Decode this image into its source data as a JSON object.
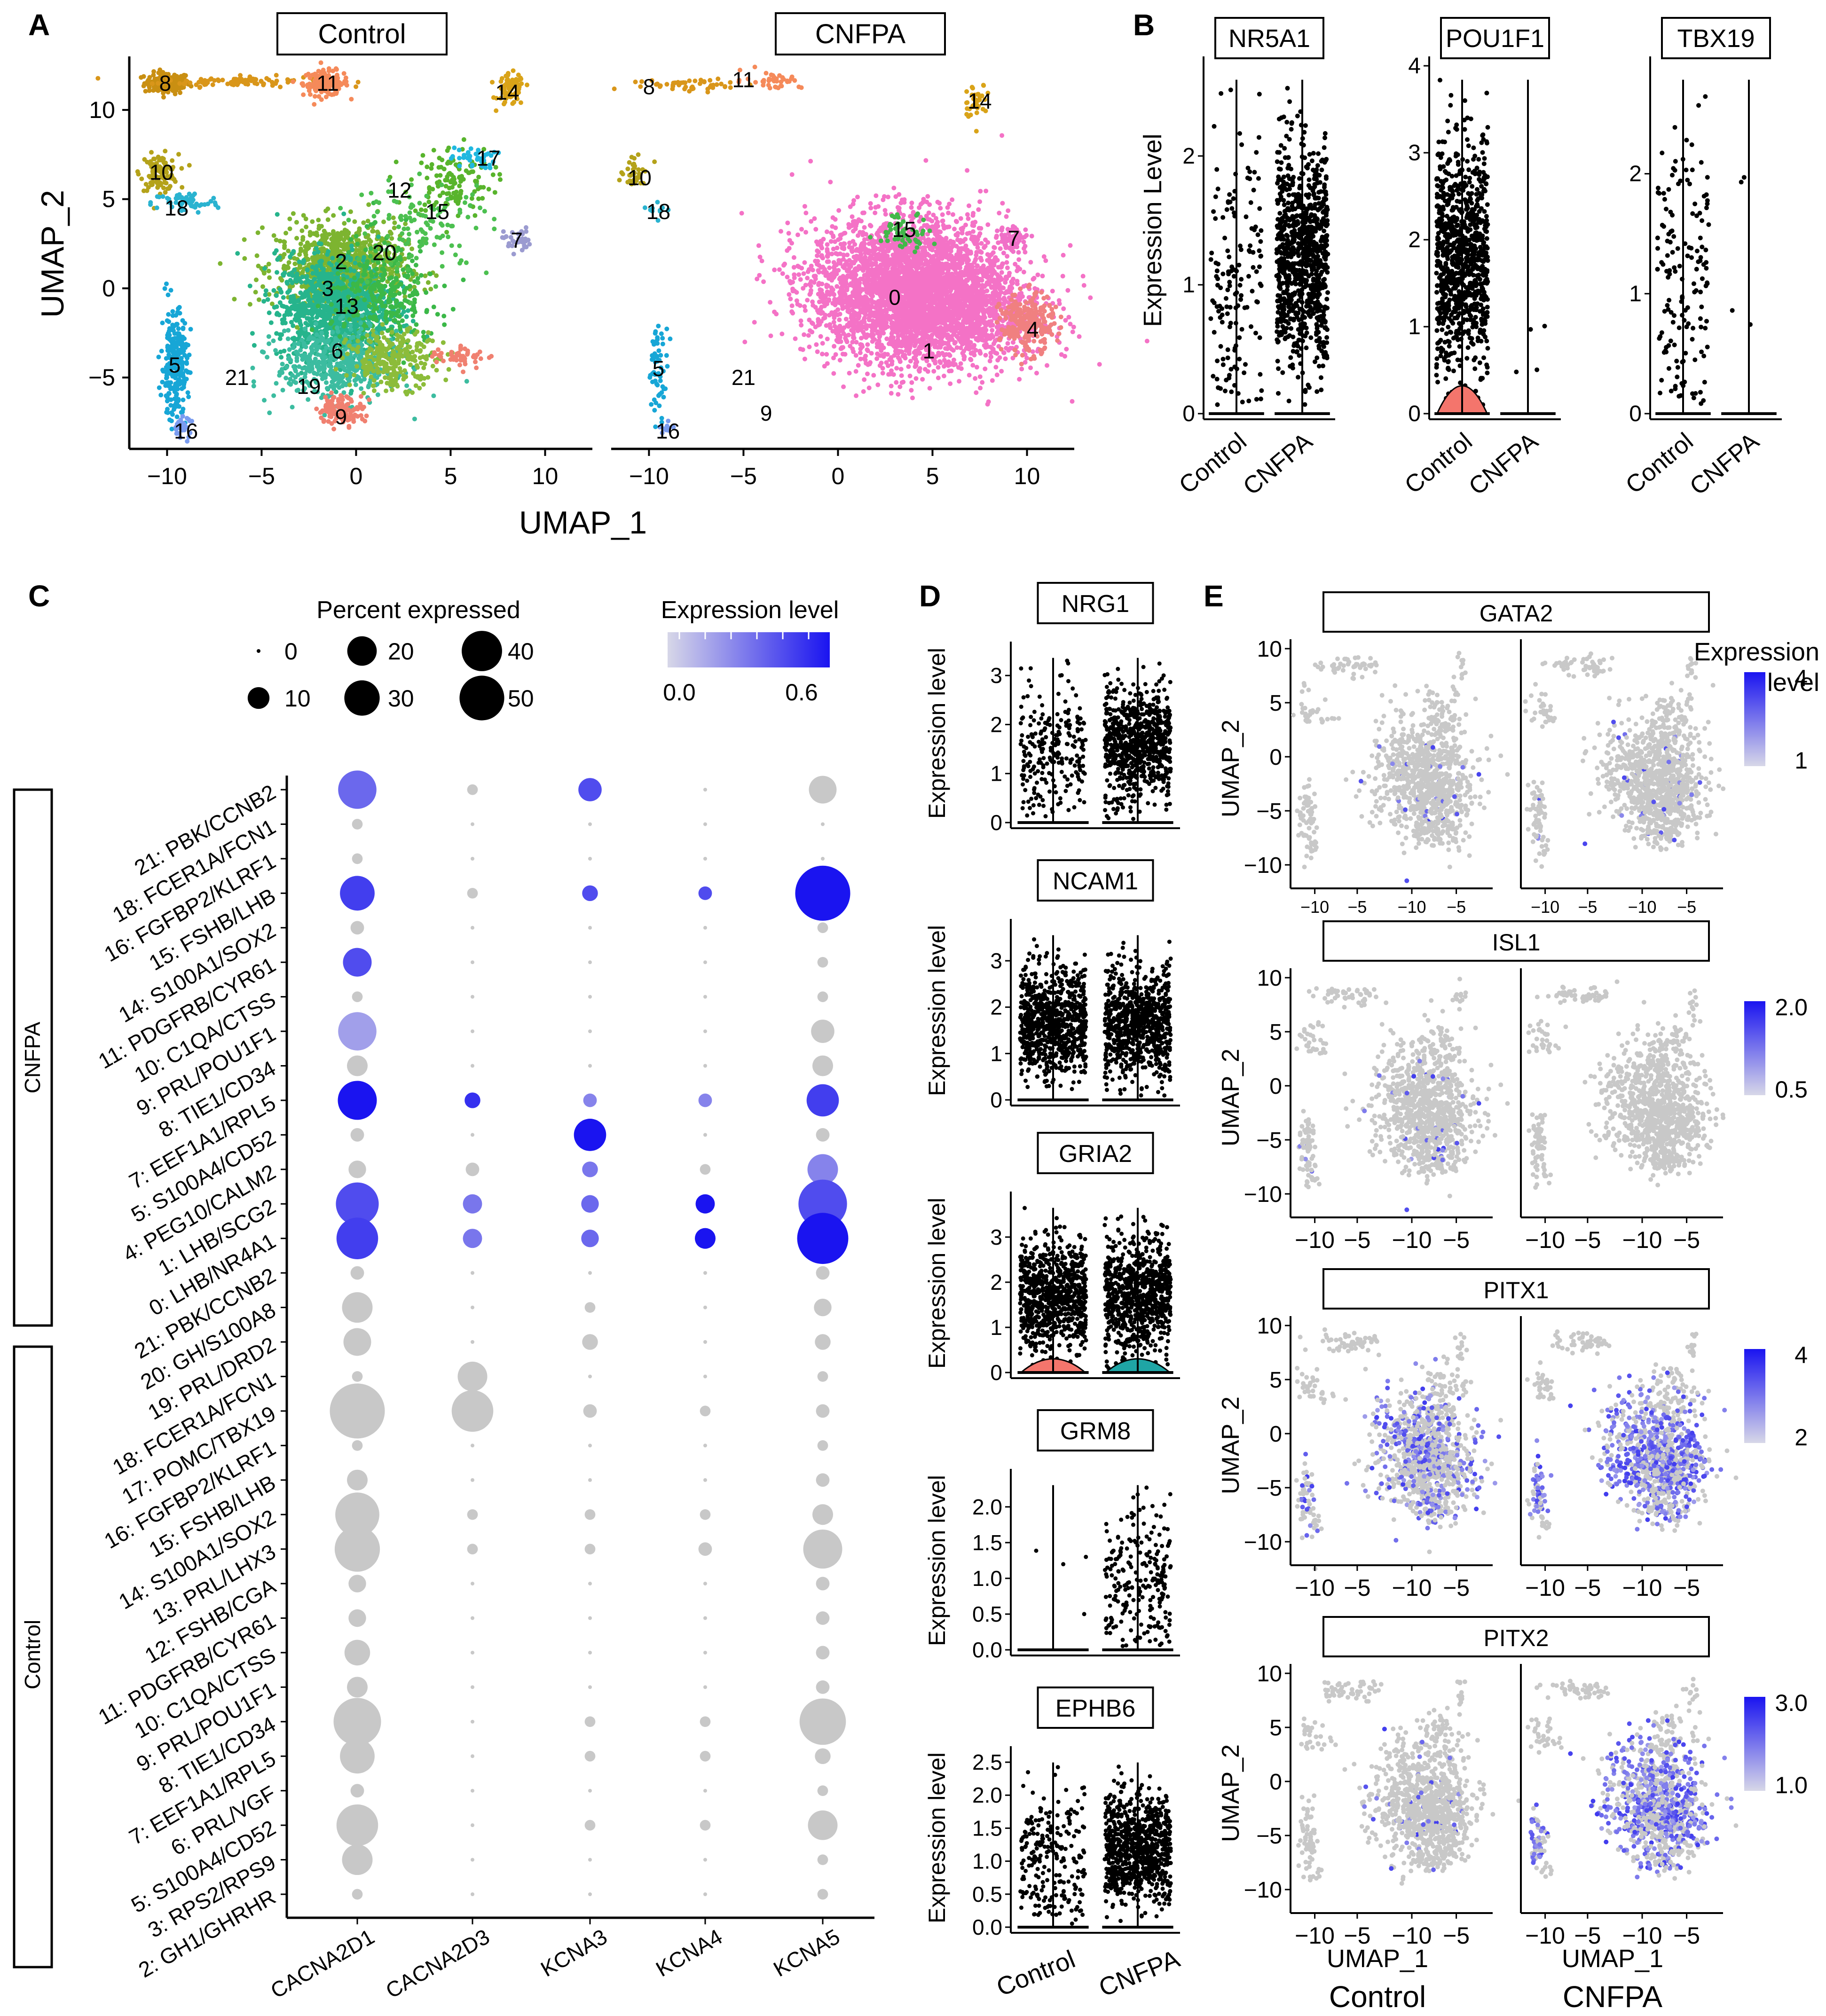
{
  "panels": {
    "A": {
      "letter": "A",
      "facets": [
        "Control",
        "CNFPA"
      ],
      "xlabel": "UMAP_1",
      "ylabel": "UMAP_2",
      "x_ticks": [
        -10,
        -5,
        0,
        5,
        10
      ],
      "y_ticks": [
        10,
        5,
        0,
        -5
      ],
      "clusters_control": [
        {
          "id": "8",
          "x": -10.1,
          "y": 11.5,
          "color": "#c98f12"
        },
        {
          "id": "11",
          "x": -1.5,
          "y": 11.5,
          "color": "#f58a5a"
        },
        {
          "id": "14",
          "x": 8.0,
          "y": 11.0,
          "color": "#d9a318"
        },
        {
          "id": "10",
          "x": -10.3,
          "y": 6.5,
          "color": "#b4a21a"
        },
        {
          "id": "18",
          "x": -9.5,
          "y": 4.5,
          "color": "#2ab3d0"
        },
        {
          "id": "17",
          "x": 7.0,
          "y": 7.3,
          "color": "#20b8e0"
        },
        {
          "id": "12",
          "x": 2.3,
          "y": 5.5,
          "color": "#6fbf2a"
        },
        {
          "id": "15",
          "x": 4.3,
          "y": 4.3,
          "color": "#42b84a"
        },
        {
          "id": "7",
          "x": 8.5,
          "y": 2.7,
          "color": "#f070c8"
        },
        {
          "id": "20",
          "x": 1.5,
          "y": 2.0,
          "color": "#a8b41e"
        },
        {
          "id": "2",
          "x": -0.8,
          "y": 1.5,
          "color": "#9aae1e"
        },
        {
          "id": "3",
          "x": -1.5,
          "y": 0.0,
          "color": "#4db84a"
        },
        {
          "id": "13",
          "x": -0.5,
          "y": -1.0,
          "color": "#20b28a"
        },
        {
          "id": "6",
          "x": -1.0,
          "y": -3.5,
          "color": "#3cbca0"
        },
        {
          "id": "21",
          "x": -6.3,
          "y": -5.0,
          "color": "#e88ab8"
        },
        {
          "id": "19",
          "x": -2.5,
          "y": -5.5,
          "color": "#ec7ad0"
        },
        {
          "id": "9",
          "x": -0.8,
          "y": -7.2,
          "color": "#f08070"
        },
        {
          "id": "5",
          "x": -9.6,
          "y": -4.3,
          "color": "#17a6d6"
        },
        {
          "id": "16",
          "x": -9.0,
          "y": -8.0,
          "color": "#7a9cf0"
        }
      ],
      "clusters_cnfpa": [
        {
          "id": "8",
          "x": -10.0,
          "y": 11.3,
          "color": "#c98f12"
        },
        {
          "id": "11",
          "x": -5.0,
          "y": 11.7,
          "color": "#f58a5a"
        },
        {
          "id": "14",
          "x": 7.5,
          "y": 10.5,
          "color": "#d9a318"
        },
        {
          "id": "10",
          "x": -10.5,
          "y": 6.2,
          "color": "#b4a21a"
        },
        {
          "id": "18",
          "x": -9.5,
          "y": 4.3,
          "color": "#2ab3d0"
        },
        {
          "id": "15",
          "x": 3.5,
          "y": 3.3,
          "color": "#42b84a"
        },
        {
          "id": "7",
          "x": 9.3,
          "y": 2.8,
          "color": "#f070c8"
        },
        {
          "id": "0",
          "x": 3.0,
          "y": -0.5,
          "color": "#f472c6"
        },
        {
          "id": "4",
          "x": 10.3,
          "y": -2.3,
          "color": "#f08080"
        },
        {
          "id": "1",
          "x": 4.8,
          "y": -3.5,
          "color": "#f472c6"
        },
        {
          "id": "5",
          "x": -9.5,
          "y": -4.5,
          "color": "#17a6d6"
        },
        {
          "id": "21",
          "x": -5.0,
          "y": -5.0,
          "color": "#e88ab8"
        },
        {
          "id": "9",
          "x": -3.8,
          "y": -7.0,
          "color": "#f08070"
        },
        {
          "id": "16",
          "x": -9.0,
          "y": -8.0,
          "color": "#7a9cf0"
        }
      ]
    },
    "B": {
      "letter": "B",
      "ylabel": "Expression Level",
      "groups": [
        "Control",
        "CNFPA"
      ],
      "genes": [
        {
          "name": "NR5A1",
          "yticks": [
            0,
            1,
            2
          ],
          "ymax": 2.7,
          "cloud": [
            "sparse",
            "dense"
          ],
          "violin": [
            false,
            false
          ],
          "violin_color": ""
        },
        {
          "name": "POU1F1",
          "yticks": [
            0,
            1,
            2,
            3,
            4
          ],
          "ymax": 4.0,
          "cloud": [
            "dense",
            "few"
          ],
          "violin": [
            true,
            false
          ],
          "violin_color": "#f4756c"
        },
        {
          "name": "TBX19",
          "yticks": [
            0,
            1,
            2
          ],
          "ymax": 2.9,
          "cloud": [
            "sparse",
            "few"
          ],
          "violin": [
            false,
            false
          ],
          "violin_color": ""
        }
      ]
    },
    "C": {
      "letter": "C",
      "legend_size_title": "Percent expressed",
      "legend_sizes": [
        "0",
        "10",
        "20",
        "30",
        "40",
        "50"
      ],
      "legend_color_title": "Expression level",
      "legend_color_ticks": [
        "0.0",
        "0.6"
      ],
      "groups": [
        {
          "label": "CNFPA",
          "rows": 14
        },
        {
          "label": "Control",
          "rows": 19
        }
      ]
    },
    "D": {
      "letter": "D",
      "ylabel": "Expression level",
      "groups": [
        "Control",
        "CNFPA"
      ],
      "genes": [
        {
          "name": "NRG1",
          "yticks": [
            "0",
            "1",
            "2",
            "3"
          ],
          "ymax": 3.5,
          "cloud": [
            "sparse",
            "dense"
          ],
          "violin_color": ""
        },
        {
          "name": "NCAM1",
          "yticks": [
            "0",
            "1",
            "2",
            "3"
          ],
          "ymax": 3.7,
          "cloud": [
            "dense",
            "dense"
          ],
          "violin_color": ""
        },
        {
          "name": "GRIA2",
          "yticks": [
            "0",
            "1",
            "2",
            "3"
          ],
          "ymax": 3.8,
          "cloud": [
            "dense",
            "dense"
          ],
          "violin_color": "teal"
        },
        {
          "name": "GRM8",
          "yticks": [
            "0.0",
            "0.5",
            "1.0",
            "1.5",
            "2.0"
          ],
          "ymax": 2.4,
          "cloud": [
            "few",
            "sparse"
          ],
          "violin_color": ""
        },
        {
          "name": "EPHB6",
          "yticks": [
            "0.0",
            "0.5",
            "1.0",
            "1.5",
            "2.0",
            "2.5"
          ],
          "ymax": 2.6,
          "cloud": [
            "sparse",
            "dense"
          ],
          "violin_color": ""
        }
      ]
    },
    "E": {
      "letter": "E",
      "ylabel": "UMAP_2",
      "xlabel": "UMAP_1",
      "yticks": [
        "10",
        "5",
        "0",
        "-5",
        "-10"
      ],
      "legend_title_line1": "Expression",
      "legend_title_line2": "level",
      "bottom_labels": [
        "Control",
        "CNFPA"
      ],
      "genes": [
        {
          "name": "GATA2",
          "xticks": [
            "-10",
            "-5",
            "-10",
            "-5"
          ],
          "legend": [
            "4",
            "1"
          ],
          "expr": [
            "sparse",
            "sparse"
          ],
          "small_ticks": true
        },
        {
          "name": "ISL1",
          "xticks": [
            "-10",
            "-5",
            "-10",
            "-5"
          ],
          "legend": [
            "2.0",
            "0.5"
          ],
          "expr": [
            "sparse",
            "none"
          ],
          "small_ticks": false
        },
        {
          "name": "PITX1",
          "xticks": [
            "-10",
            "-5",
            "-10",
            "-5"
          ],
          "legend": [
            "4",
            "2"
          ],
          "expr": [
            "medium",
            "dense"
          ],
          "small_ticks": false
        },
        {
          "name": "PITX2",
          "xticks": [
            "-10",
            "-5",
            "-10",
            "-5"
          ],
          "legend": [
            "3.0",
            "1.0"
          ],
          "expr": [
            "sparse",
            "dense"
          ],
          "small_ticks": false
        }
      ]
    }
  },
  "chart_data": {
    "type": "scatter",
    "title": "",
    "dotplot": {
      "type": "dotplot",
      "genes": [
        "CACNA2D1",
        "CACNA2D3",
        "KCNA3",
        "KCNA4",
        "KCNA5"
      ],
      "rows": [
        {
          "label": "21: PBK/CCNB2",
          "group": "CNFPA",
          "pct": [
            25,
            1,
            8,
            0,
            12
          ],
          "avg": [
            0.4,
            0,
            0.5,
            0,
            0
          ]
        },
        {
          "label": "18: FCER1A/FCN1",
          "group": "CNFPA",
          "pct": [
            1,
            0,
            0,
            0,
            0
          ],
          "avg": [
            0,
            0,
            0,
            0,
            0
          ]
        },
        {
          "label": "16: FGFBP2/KLRF1",
          "group": "CNFPA",
          "pct": [
            1,
            0,
            0,
            0,
            0
          ],
          "avg": [
            0,
            0,
            0,
            0,
            0
          ]
        },
        {
          "label": "15: FSHB/LHB",
          "group": "CNFPA",
          "pct": [
            20,
            1,
            3,
            2,
            55
          ],
          "avg": [
            0.55,
            0,
            0.5,
            0.5,
            0.75
          ]
        },
        {
          "label": "14: S100A1/SOX2",
          "group": "CNFPA",
          "pct": [
            2,
            0,
            0,
            0,
            1
          ],
          "avg": [
            0,
            0,
            0,
            0,
            0
          ]
        },
        {
          "label": "11: PDGFRB/CYR61",
          "group": "CNFPA",
          "pct": [
            13,
            0,
            0,
            0,
            1
          ],
          "avg": [
            0.5,
            0,
            0,
            0,
            0
          ]
        },
        {
          "label": "10: C1QA/CTSS",
          "group": "CNFPA",
          "pct": [
            1,
            0,
            0,
            0,
            1
          ],
          "avg": [
            0,
            0,
            0,
            0,
            0
          ]
        },
        {
          "label": "9: PRL/POU1F1",
          "group": "CNFPA",
          "pct": [
            25,
            0,
            0,
            0,
            8
          ],
          "avg": [
            0.2,
            0,
            0,
            0,
            0
          ]
        },
        {
          "label": "8: TIE1/CD34",
          "group": "CNFPA",
          "pct": [
            6,
            0,
            0,
            0,
            6
          ],
          "avg": [
            0,
            0,
            0,
            0,
            0
          ]
        },
        {
          "label": "7: EEF1A1/RPL5",
          "group": "CNFPA",
          "pct": [
            26,
            3,
            2,
            2,
            17
          ],
          "avg": [
            0.8,
            0.6,
            0.3,
            0.3,
            0.55
          ]
        },
        {
          "label": "5: S100A4/CD52",
          "group": "CNFPA",
          "pct": [
            2,
            0,
            17,
            0,
            2
          ],
          "avg": [
            0,
            0,
            0.85,
            0,
            0
          ]
        },
        {
          "label": "4: PEG10/CALM2",
          "group": "CNFPA",
          "pct": [
            4,
            2,
            3,
            1,
            15
          ],
          "avg": [
            0,
            0,
            0.35,
            0,
            0.3
          ]
        },
        {
          "label": "1: LHB/SCG2",
          "group": "CNFPA",
          "pct": [
            32,
            5,
            4,
            5,
            42
          ],
          "avg": [
            0.5,
            0.35,
            0.4,
            0.75,
            0.5
          ]
        },
        {
          "label": "0: LHB/NR4A1",
          "group": "CNFPA",
          "pct": [
            30,
            5,
            4,
            6,
            47
          ],
          "avg": [
            0.55,
            0.35,
            0.4,
            0.8,
            0.75
          ]
        },
        {
          "label": "21: PBK/CCNB2",
          "group": "Control",
          "pct": [
            2,
            0,
            0,
            0,
            2
          ],
          "avg": [
            0,
            0,
            0,
            0,
            0
          ]
        },
        {
          "label": "20: GH/S100A8",
          "group": "Control",
          "pct": [
            15,
            0,
            1,
            0,
            4
          ],
          "avg": [
            0,
            0,
            0,
            0,
            0
          ]
        },
        {
          "label": "19: PRL/DRD2",
          "group": "Control",
          "pct": [
            12,
            0,
            3,
            0,
            3
          ],
          "avg": [
            0,
            0,
            0,
            0,
            0
          ]
        },
        {
          "label": "18: FCER1A/FCN1",
          "group": "Control",
          "pct": [
            1,
            14,
            0,
            0,
            1
          ],
          "avg": [
            0,
            0,
            0,
            0,
            0
          ]
        },
        {
          "label": "17: POMC/TBX19",
          "group": "Control",
          "pct": [
            55,
            30,
            2,
            1,
            2
          ],
          "avg": [
            0,
            0,
            0,
            0,
            0
          ]
        },
        {
          "label": "16: FGFBP2/KLRF1",
          "group": "Control",
          "pct": [
            1,
            0,
            0,
            0,
            1
          ],
          "avg": [
            0,
            0,
            0,
            0,
            0
          ]
        },
        {
          "label": "15: FSHB/LHB",
          "group": "Control",
          "pct": [
            6,
            0,
            0,
            0,
            2
          ],
          "avg": [
            0,
            0,
            0,
            0,
            0
          ]
        },
        {
          "label": "14: S100A1/SOX2",
          "group": "Control",
          "pct": [
            34,
            1,
            1,
            1,
            6
          ],
          "avg": [
            0,
            0,
            0,
            0,
            0
          ]
        },
        {
          "label": "13: PRL/LHX3",
          "group": "Control",
          "pct": [
            36,
            1,
            1,
            2,
            26
          ],
          "avg": [
            0,
            0,
            0,
            0,
            0
          ]
        },
        {
          "label": "12: FSHB/CGA",
          "group": "Control",
          "pct": [
            4,
            0,
            0,
            0,
            2
          ],
          "avg": [
            0,
            0,
            0,
            0,
            0
          ]
        },
        {
          "label": "11: PDGFRB/CYR61",
          "group": "Control",
          "pct": [
            4,
            0,
            0,
            0,
            2
          ],
          "avg": [
            0,
            0,
            0,
            0,
            0
          ]
        },
        {
          "label": "10: C1QA/CTSS",
          "group": "Control",
          "pct": [
            10,
            0,
            0,
            0,
            2
          ],
          "avg": [
            0,
            0,
            0,
            0,
            0
          ]
        },
        {
          "label": "9: PRL/POU1F1",
          "group": "Control",
          "pct": [
            6,
            0,
            0,
            0,
            2
          ],
          "avg": [
            0,
            0,
            0,
            0,
            0
          ]
        },
        {
          "label": "8: TIE1/CD34",
          "group": "Control",
          "pct": [
            40,
            0,
            1,
            1,
            38
          ],
          "avg": [
            0,
            0,
            0,
            0,
            0
          ]
        },
        {
          "label": "7: EEF1A1/RPL5",
          "group": "Control",
          "pct": [
            20,
            0,
            1,
            1,
            3
          ],
          "avg": [
            0,
            0,
            0,
            0,
            0
          ]
        },
        {
          "label": "6: PRL/VGF",
          "group": "Control",
          "pct": [
            2,
            0,
            0,
            0,
            1
          ],
          "avg": [
            0,
            0,
            0,
            0,
            0
          ]
        },
        {
          "label": "5: S100A4/CD52",
          "group": "Control",
          "pct": [
            30,
            0,
            1,
            1,
            14
          ],
          "avg": [
            0,
            0,
            0,
            0,
            0
          ]
        },
        {
          "label": "3: RPS2/RPS9",
          "group": "Control",
          "pct": [
            15,
            0,
            0,
            0,
            1
          ],
          "avg": [
            0,
            0,
            0,
            0,
            0
          ]
        },
        {
          "label": "2: GH1/GHRHR",
          "group": "Control",
          "pct": [
            1,
            0,
            0,
            0,
            1
          ],
          "avg": [
            0,
            0,
            0,
            0,
            0
          ]
        }
      ],
      "size_range": [
        0,
        50
      ],
      "color_range": [
        0.0,
        0.7
      ]
    },
    "umap": {
      "type": "scatter",
      "xlim": [
        -12,
        12.5
      ],
      "ylim": [
        -9,
        13
      ]
    }
  },
  "colors": {
    "grey": "#c8c8c8",
    "expr_low": "#d7d7e8",
    "expr_high": "#1a14f0",
    "axis": "#000000"
  }
}
